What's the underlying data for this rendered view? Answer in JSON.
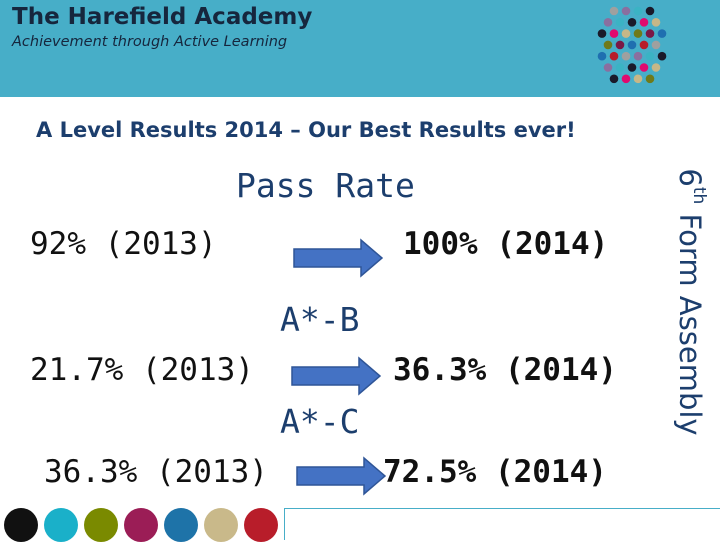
{
  "header": {
    "school_name": "The Harefield Academy",
    "tagline": "Achievement through Active Learning",
    "background_color": "#47aec8",
    "logo_colors": [
      "#9fa09f",
      "#7a1846",
      "#e00a6f",
      "#8a6f9f",
      "#1f6fb0",
      "#c7b787",
      "#3bb3c4",
      "#b71c2a",
      "#6f7a1a",
      "#1a1a2a"
    ]
  },
  "slide": {
    "title": "A Level Results 2014 – Our Best Results ever!",
    "side_label_main": "Form Assembly",
    "side_label_number": "6",
    "side_label_sup": "th",
    "text_color": "#1c3e6d"
  },
  "stats": [
    {
      "heading": "Pass Rate",
      "from": "92% (2013)",
      "to": "100% (2014)"
    },
    {
      "heading": "A*-B",
      "from": "21.7% (2013)",
      "to": "36.3% (2014)"
    },
    {
      "heading": "A*-C",
      "from": "36.3% (2013)",
      "to": "72.5% (2014)"
    }
  ],
  "arrow_color": "#4472c4",
  "footer": {
    "dot_colors": [
      "#111111",
      "#1ab0c9",
      "#7a8a00",
      "#9b1d56",
      "#1e73a8",
      "#c9b98a",
      "#b81d2a"
    ]
  }
}
